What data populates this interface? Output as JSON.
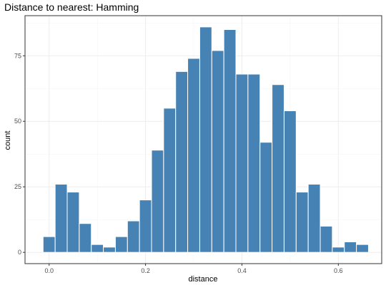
{
  "chart_data": {
    "type": "bar",
    "title": "Distance to nearest: Hamming",
    "xlabel": "distance",
    "ylabel": "count",
    "xlim": [
      -0.05,
      0.69
    ],
    "ylim": [
      -4.3,
      90.3
    ],
    "xticks": [
      0.0,
      0.2,
      0.4,
      0.6
    ],
    "xtick_labels": [
      "0.0",
      "0.2",
      "0.4",
      "0.6"
    ],
    "yticks": [
      0,
      25,
      50,
      75
    ],
    "ytick_labels": [
      "0",
      "25",
      "50",
      "75"
    ],
    "bin_width": 0.025,
    "bin_centers": [
      0.0,
      0.025,
      0.05,
      0.075,
      0.1,
      0.125,
      0.15,
      0.175,
      0.2,
      0.225,
      0.25,
      0.275,
      0.3,
      0.325,
      0.35,
      0.375,
      0.4,
      0.425,
      0.45,
      0.475,
      0.5,
      0.525,
      0.55,
      0.575,
      0.6,
      0.625,
      0.65
    ],
    "values": [
      6,
      26,
      23,
      11,
      3,
      2,
      6,
      12,
      20,
      39,
      55,
      69,
      74,
      86,
      77,
      85,
      68,
      68,
      42,
      64,
      54,
      23,
      26,
      10,
      2,
      4,
      3
    ],
    "grid": true,
    "colors": {
      "bar": "#4682b4",
      "bar_outline": "#ffffff",
      "grid": "#ebebeb",
      "panel_border": "#333333"
    }
  }
}
